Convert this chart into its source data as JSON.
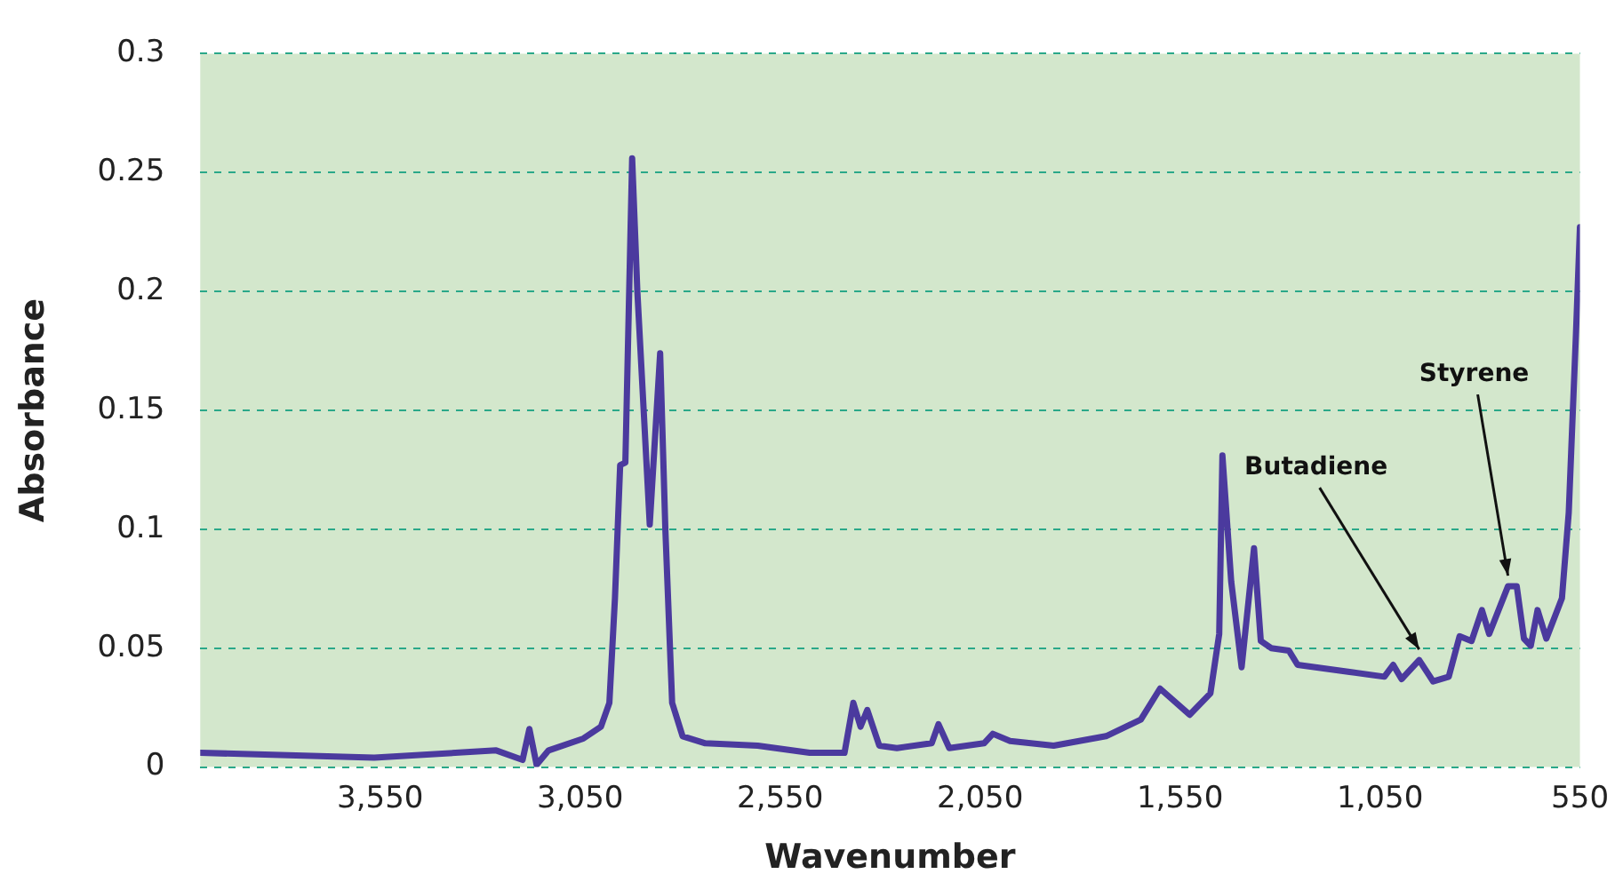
{
  "chart_data": {
    "type": "line",
    "xlabel": "Wavenumber",
    "ylabel": "Absorbance",
    "xlim": [
      4000,
      550
    ],
    "xticks": [
      {
        "value": 3550,
        "label": "3,550"
      },
      {
        "value": 3050,
        "label": "3,050"
      },
      {
        "value": 2550,
        "label": "2,550"
      },
      {
        "value": 2050,
        "label": "2,050"
      },
      {
        "value": 1550,
        "label": "1,550"
      },
      {
        "value": 1050,
        "label": "1,050"
      },
      550
    ],
    "ylim": [
      0,
      0.3
    ],
    "yticks": [
      0,
      0.05,
      0.1,
      0.15,
      0.2,
      0.25,
      0.3
    ],
    "grid": "y",
    "marker": "none",
    "line_style": "solid",
    "series": [
      {
        "color": "#4b3a9e",
        "x": [
          4000,
          3565,
          3260,
          3194,
          3177,
          3159,
          3129,
          3042,
          2998,
          2977,
          2963,
          2950,
          2937,
          2920,
          2907,
          2876,
          2850,
          2837,
          2820,
          2794,
          2737,
          2606,
          2476,
          2389,
          2367,
          2349,
          2332,
          2302,
          2258,
          2171,
          2154,
          2127,
          2040,
          2018,
          1975,
          1866,
          1735,
          1648,
          1600,
          1526,
          1474,
          1452,
          1444,
          1422,
          1396,
          1365,
          1348,
          1322,
          1278,
          1256,
          1126,
          1039,
          1017,
          996,
          952,
          917,
          878,
          851,
          821,
          795,
          777,
          730,
          708,
          690,
          673,
          656,
          634,
          595,
          578,
          560,
          550
        ],
        "values": [
          0.006,
          0.004,
          0.007,
          0.003,
          0.016,
          0.001,
          0.007,
          0.012,
          0.017,
          0.027,
          0.071,
          0.127,
          0.128,
          0.256,
          0.2,
          0.102,
          0.174,
          0.1,
          0.027,
          0.013,
          0.01,
          0.009,
          0.006,
          0.006,
          0.027,
          0.017,
          0.024,
          0.009,
          0.008,
          0.01,
          0.018,
          0.008,
          0.01,
          0.014,
          0.011,
          0.009,
          0.013,
          0.02,
          0.033,
          0.022,
          0.031,
          0.056,
          0.131,
          0.078,
          0.042,
          0.092,
          0.053,
          0.05,
          0.049,
          0.043,
          0.04,
          0.038,
          0.043,
          0.037,
          0.045,
          0.036,
          0.038,
          0.055,
          0.053,
          0.066,
          0.056,
          0.076,
          0.076,
          0.054,
          0.051,
          0.066,
          0.054,
          0.071,
          0.107,
          0.182,
          0.227
        ]
      }
    ],
    "annotations": [
      {
        "text": "Butadiene",
        "x": 952,
        "y": 0.045
      },
      {
        "text": "Styrene",
        "x": 730,
        "y": 0.076
      }
    ]
  }
}
